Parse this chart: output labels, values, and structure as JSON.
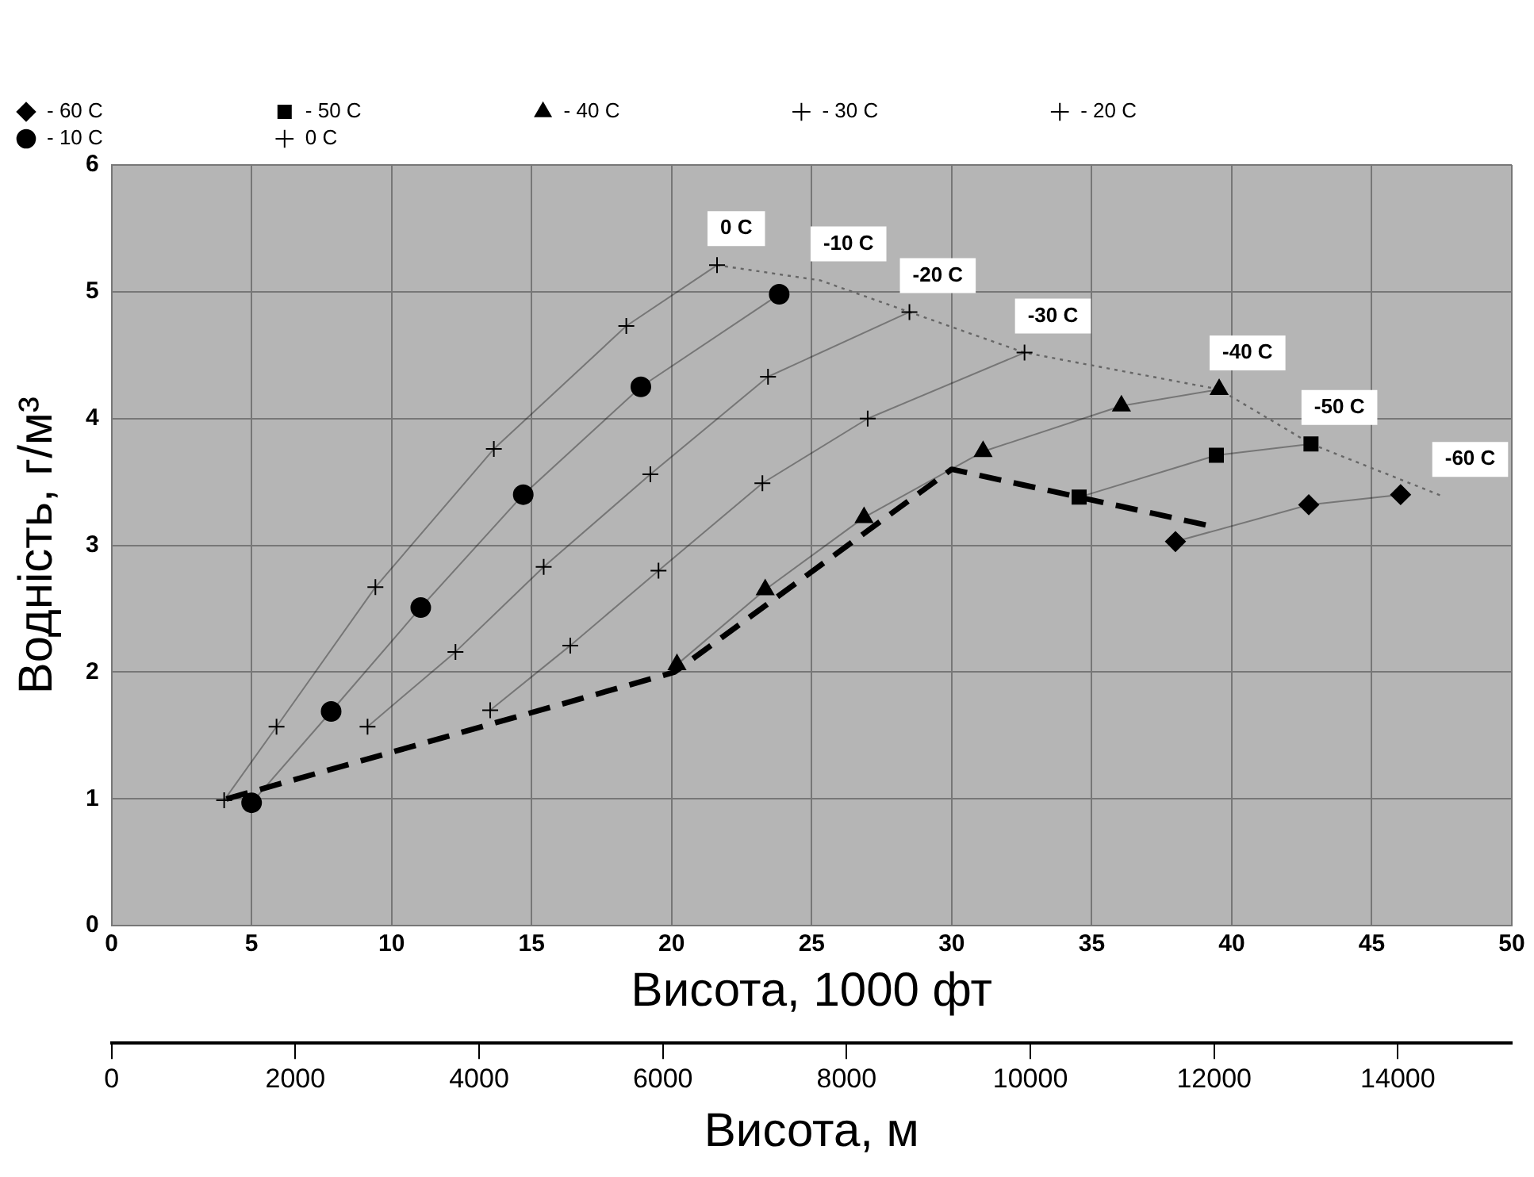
{
  "chart_data": {
    "type": "line",
    "xlabel": "Висота, 1000 фт",
    "ylabel": "Водність, г/м³",
    "x2label": "Висота, м",
    "xlim": [
      0,
      50
    ],
    "xticks": [
      0,
      5,
      10,
      15,
      20,
      25,
      30,
      35,
      40,
      45,
      50
    ],
    "ylim": [
      0,
      6
    ],
    "yticks": [
      0,
      1,
      2,
      3,
      4,
      5,
      6
    ],
    "x2lim": [
      0,
      15240
    ],
    "x2ticks": [
      0,
      2000,
      4000,
      6000,
      8000,
      10000,
      12000,
      14000
    ],
    "grid": true,
    "legend": "top",
    "series": [
      {
        "name": "- 60 C",
        "type": "line",
        "marker": "diamond",
        "color": "#000000",
        "x": [
          37.99,
          42.75,
          46.03
        ],
        "values": [
          3.03,
          3.32,
          3.4
        ]
      },
      {
        "name": "- 50 C",
        "type": "line",
        "marker": "square",
        "color": "#000000",
        "x": [
          34.55,
          39.45,
          42.83
        ],
        "values": [
          3.38,
          3.71,
          3.8
        ]
      },
      {
        "name": "- 40 C",
        "type": "line",
        "marker": "triangle",
        "color": "#000000",
        "x": [
          20.19,
          23.34,
          26.87,
          31.12,
          36.06,
          39.55
        ],
        "values": [
          2.06,
          2.65,
          3.22,
          3.74,
          4.1,
          4.23
        ]
      },
      {
        "name": "- 30 C",
        "type": "line",
        "marker": "cross",
        "color": "#000000",
        "x": [
          13.52,
          16.38,
          19.53,
          23.24,
          27.0,
          32.6
        ],
        "values": [
          1.7,
          2.21,
          2.8,
          3.49,
          4.0,
          4.52
        ]
      },
      {
        "name": "- 20 C",
        "type": "line",
        "marker": "cross",
        "color": "#000000",
        "x": [
          9.14,
          12.28,
          15.43,
          19.24,
          23.44,
          28.49
        ],
        "values": [
          1.57,
          2.16,
          2.83,
          3.56,
          4.33,
          4.84
        ]
      },
      {
        "name": "- 10 C",
        "type": "line",
        "marker": "circle",
        "color": "#000000",
        "x": [
          5.0,
          7.84,
          11.04,
          14.7,
          18.9,
          23.84
        ],
        "values": [
          0.97,
          1.69,
          2.51,
          3.4,
          4.25,
          4.98
        ]
      },
      {
        "name": "0 C",
        "type": "line",
        "marker": "cross",
        "color": "#000000",
        "x": [
          4.02,
          5.89,
          9.42,
          13.65,
          18.38,
          21.62
        ],
        "values": [
          0.99,
          1.57,
          2.67,
          3.76,
          4.73,
          5.21
        ]
      },
      {
        "type": "line",
        "marker": "none",
        "line_style": "dotted",
        "color": "#666666",
        "x": [
          21.62,
          25.3,
          28.49,
          32.6,
          39.55,
          42.83,
          47.5
        ],
        "values": [
          5.21,
          5.09,
          4.84,
          4.52,
          4.23,
          3.8,
          3.39
        ]
      },
      {
        "type": "line",
        "marker": "none",
        "line_style": "dashed",
        "color": "#000000",
        "x": [
          4.1,
          20.1,
          30.0,
          39.3
        ],
        "values": [
          1.0,
          2.0,
          3.6,
          3.15
        ]
      }
    ],
    "annotations": [
      {
        "text": "0 C",
        "x": 21.62,
        "y": 5.21
      },
      {
        "text": "-10 C",
        "x": 25.3,
        "y": 5.09
      },
      {
        "text": "-20 C",
        "x": 28.49,
        "y": 4.84
      },
      {
        "text": "-30 C",
        "x": 32.6,
        "y": 4.52
      },
      {
        "text": "-40 C",
        "x": 39.55,
        "y": 4.23
      },
      {
        "text": "-50 C",
        "x": 42.83,
        "y": 3.8
      },
      {
        "text": "-60 C",
        "x": 47.5,
        "y": 3.39
      }
    ]
  }
}
